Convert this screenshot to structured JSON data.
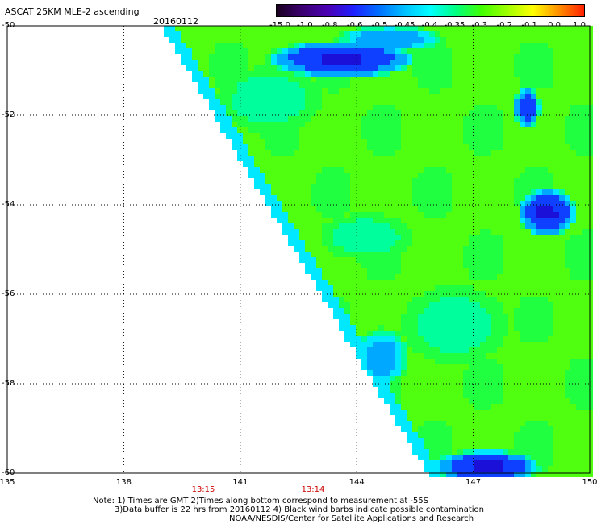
{
  "title": "ASCAT 25KM MLE-2 ascending",
  "date": "20160112",
  "colorbar": {
    "labels": [
      "-15.0",
      "-1.0",
      "-0.8",
      "-0.6",
      "-0.5",
      "-0.45",
      "-0.4",
      "-0.35",
      "-0.3",
      "-0.2",
      "-0.1",
      "0.0",
      "1.0"
    ],
    "colors": [
      "#1a0020",
      "#3a0070",
      "#4b00b4",
      "#2020ff",
      "#0070ff",
      "#00c0ff",
      "#00ffff",
      "#00ff80",
      "#40ff00",
      "#a0ff00",
      "#ffff00",
      "#ff9000",
      "#ff2000"
    ]
  },
  "lat_labels": [
    "-50",
    "-52",
    "-54",
    "-56",
    "-58",
    "-60"
  ],
  "lon_labels": [
    "135",
    "138",
    "141",
    "144",
    "147",
    "150"
  ],
  "time_labels": [
    "13:15",
    "13:14"
  ],
  "notes": [
    "Note: 1) Times are GMT 2)Times along bottom correspond to measurement at -55S",
    "3)Data buffer is 22 hrs from 20160112 4) Black wind barbs indicate possible contamination",
    "NOAA/NESDIS/Center for Satellite Applications and Research"
  ],
  "chart_data": {
    "type": "heatmap",
    "title": "ASCAT 25KM MLE-2 ascending",
    "date": "20160112",
    "lon_range": [
      135,
      150
    ],
    "lat_range": [
      -60,
      -50
    ],
    "grid": true,
    "colorbar_position": "top-right"
  }
}
